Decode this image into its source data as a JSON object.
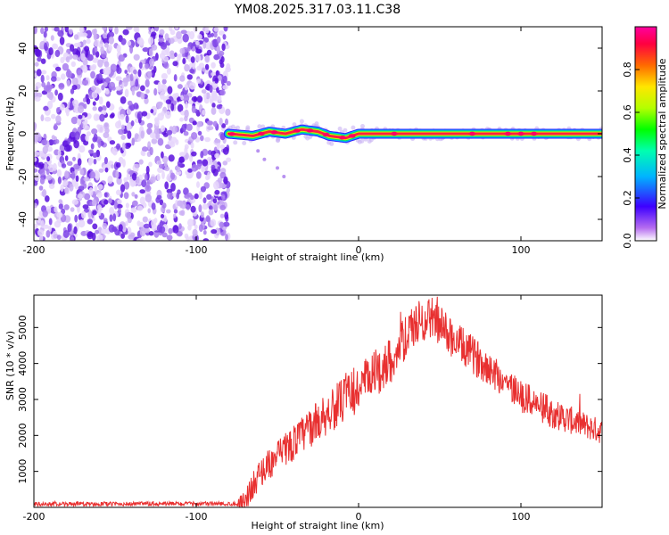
{
  "title": "YM08.2025.317.03.11.C38",
  "chart_data": [
    {
      "type": "heatmap",
      "name": "spectrogram",
      "xlabel": "Height of straight line (km)",
      "ylabel": "Frequency (Hz)",
      "xlim": [
        -200,
        150
      ],
      "ylim": [
        -50,
        50
      ],
      "xticks": [
        -200,
        -100,
        0,
        100
      ],
      "xtick_labels": [
        "-200",
        "-100",
        "0",
        "100"
      ],
      "yticks": [
        -40,
        -20,
        0,
        20,
        40
      ],
      "ytick_labels": [
        "-40",
        "-20",
        "0",
        "20",
        "40"
      ],
      "noise_region_x": [
        -200,
        -80
      ],
      "signal_region_x": [
        -80,
        150
      ],
      "signal_frequency_track": [
        {
          "x": -80,
          "y": 0
        },
        {
          "x": -65,
          "y": -1
        },
        {
          "x": -55,
          "y": 1
        },
        {
          "x": -45,
          "y": 0
        },
        {
          "x": -35,
          "y": 2
        },
        {
          "x": -25,
          "y": 1
        },
        {
          "x": -18,
          "y": -1
        },
        {
          "x": -8,
          "y": -2
        },
        {
          "x": 0,
          "y": 0
        },
        {
          "x": 20,
          "y": 0
        },
        {
          "x": 70,
          "y": 0
        },
        {
          "x": 150,
          "y": 0
        }
      ],
      "colorbar": {
        "label": "Normalized spectral amplitude",
        "range": [
          0,
          1
        ],
        "ticks": [
          0.0,
          0.2,
          0.4,
          0.6,
          0.8
        ],
        "tick_labels": [
          "0.0",
          "0.2",
          "0.4",
          "0.6",
          "0.8"
        ]
      }
    },
    {
      "type": "line",
      "name": "snr",
      "xlabel": "Height of straight line (km)",
      "ylabel": "SNR (10 * v/v)",
      "xlim": [
        -200,
        150
      ],
      "ylim": [
        0,
        5900
      ],
      "xticks": [
        -200,
        -100,
        0,
        100
      ],
      "xtick_labels": [
        "-200",
        "-100",
        "0",
        "100"
      ],
      "yticks": [
        1000,
        2000,
        3000,
        4000,
        5000
      ],
      "ytick_labels": [
        "1000",
        "2000",
        "3000",
        "4000",
        "5000"
      ],
      "color": "#e83030",
      "envelope": [
        {
          "x": -200,
          "y": 90
        },
        {
          "x": -75,
          "y": 100
        },
        {
          "x": -70,
          "y": 200
        },
        {
          "x": -60,
          "y": 1000
        },
        {
          "x": -40,
          "y": 1800
        },
        {
          "x": -20,
          "y": 2600
        },
        {
          "x": 0,
          "y": 3300
        },
        {
          "x": 20,
          "y": 4100
        },
        {
          "x": 35,
          "y": 5100
        },
        {
          "x": 45,
          "y": 5300
        },
        {
          "x": 60,
          "y": 4600
        },
        {
          "x": 80,
          "y": 3900
        },
        {
          "x": 100,
          "y": 3100
        },
        {
          "x": 120,
          "y": 2600
        },
        {
          "x": 150,
          "y": 2100
        }
      ],
      "noise_amplitude": [
        {
          "x": -200,
          "y": 60
        },
        {
          "x": -75,
          "y": 60
        },
        {
          "x": -70,
          "y": 350
        },
        {
          "x": 0,
          "y": 700
        },
        {
          "x": 40,
          "y": 600
        },
        {
          "x": 150,
          "y": 350
        }
      ]
    }
  ]
}
